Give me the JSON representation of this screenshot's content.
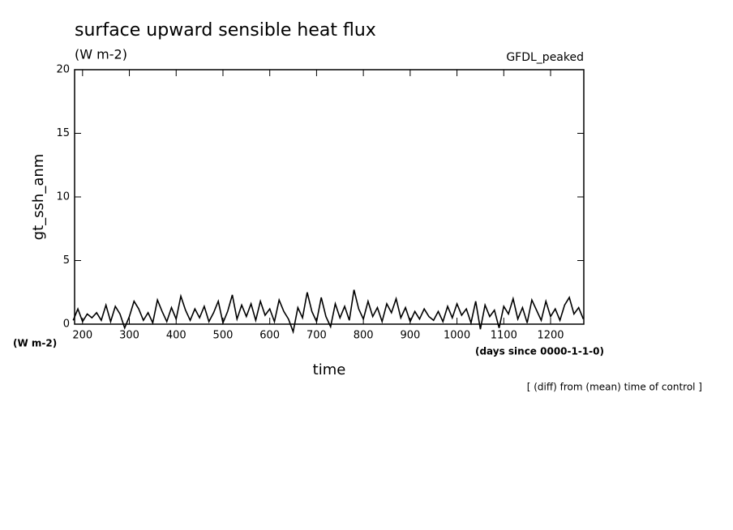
{
  "chart_data": {
    "type": "line",
    "title": "surface upward sensible heat flux",
    "subtitle": "(W m-2)",
    "annotation_right": "GFDL_peaked",
    "y_label": "gt_ssh_anm",
    "y_unit": "(W m-2)",
    "x_label": "time",
    "x_unit": "(days since 0000-1-1-0)",
    "note": "[ (diff) from (mean) time of control ]",
    "xlim": [
      183,
      1271
    ],
    "ylim": [
      0,
      20
    ],
    "xticks": [
      200,
      300,
      400,
      500,
      600,
      700,
      800,
      900,
      1000,
      1100,
      1200
    ],
    "yticks": [
      0,
      5,
      10,
      15,
      20
    ],
    "x": [
      180,
      190,
      200,
      210,
      220,
      230,
      240,
      250,
      260,
      270,
      280,
      290,
      300,
      310,
      320,
      330,
      340,
      350,
      360,
      370,
      380,
      390,
      400,
      410,
      420,
      430,
      440,
      450,
      460,
      470,
      480,
      490,
      500,
      510,
      520,
      530,
      540,
      550,
      560,
      570,
      580,
      590,
      600,
      610,
      620,
      630,
      640,
      650,
      660,
      670,
      680,
      690,
      700,
      710,
      720,
      730,
      740,
      750,
      760,
      770,
      780,
      790,
      800,
      810,
      820,
      830,
      840,
      850,
      860,
      870,
      880,
      890,
      900,
      910,
      920,
      930,
      940,
      950,
      960,
      970,
      980,
      990,
      1000,
      1010,
      1020,
      1030,
      1040,
      1050,
      1060,
      1070,
      1080,
      1090,
      1100,
      1110,
      1120,
      1130,
      1140,
      1150,
      1160,
      1170,
      1180,
      1190,
      1200,
      1210,
      1220,
      1230,
      1240,
      1250,
      1260,
      1270
    ],
    "series": [
      {
        "color": "#000000",
        "values": [
          0.3,
          1.2,
          0.2,
          0.8,
          0.5,
          0.9,
          0.3,
          1.5,
          0.2,
          1.4,
          0.8,
          -0.3,
          0.6,
          1.8,
          1.2,
          0.3,
          0.9,
          0.1,
          1.9,
          1.0,
          0.2,
          1.3,
          0.4,
          2.2,
          1.1,
          0.3,
          1.2,
          0.5,
          1.4,
          0.2,
          0.9,
          1.8,
          0.1,
          1.0,
          2.3,
          0.4,
          1.5,
          0.6,
          1.6,
          0.3,
          1.8,
          0.7,
          1.2,
          0.2,
          1.9,
          1.0,
          0.4,
          -0.6,
          1.3,
          0.5,
          2.5,
          1.0,
          0.2,
          2.1,
          0.6,
          -0.2,
          1.6,
          0.5,
          1.4,
          0.3,
          2.7,
          1.2,
          0.4,
          1.8,
          0.6,
          1.3,
          0.2,
          1.6,
          0.9,
          2.0,
          0.5,
          1.3,
          0.2,
          1.0,
          0.4,
          1.2,
          0.6,
          0.3,
          1.0,
          0.2,
          1.4,
          0.5,
          1.6,
          0.7,
          1.2,
          0.1,
          1.8,
          -0.4,
          1.5,
          0.6,
          1.1,
          -0.3,
          1.4,
          0.8,
          2.0,
          0.4,
          1.3,
          0.1,
          1.9,
          1.1,
          0.3,
          1.8,
          0.6,
          1.2,
          0.3,
          1.5,
          2.1,
          0.8,
          1.3,
          0.4
        ]
      }
    ]
  }
}
